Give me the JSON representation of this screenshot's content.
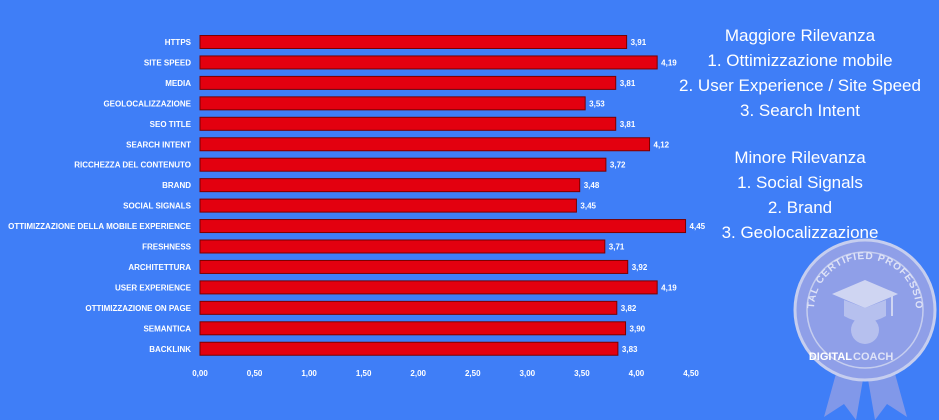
{
  "chart_data": {
    "type": "bar",
    "orientation": "horizontal",
    "categories": [
      "HTTPS",
      "SITE SPEED",
      "MEDIA",
      "GEOLOCALIZZAZIONE",
      "SEO TITLE",
      "SEARCH INTENT",
      "RICCHEZZA DEL CONTENUTO",
      "BRAND",
      "SOCIAL SIGNALS",
      "OTTIMIZZAZIONE DELLA MOBILE EXPERIENCE",
      "FRESHNESS",
      "ARCHITETTURA",
      "USER EXPERIENCE",
      "OTTIMIZZAZIONE ON PAGE",
      "SEMANTICA",
      "BACKLINK"
    ],
    "values": [
      3.91,
      4.19,
      3.81,
      3.53,
      3.81,
      4.12,
      3.72,
      3.48,
      3.45,
      4.45,
      3.71,
      3.92,
      4.19,
      3.82,
      3.9,
      3.83
    ],
    "value_labels": [
      "3,91",
      "4,19",
      "3,81",
      "3,53",
      "3,81",
      "4,12",
      "3,72",
      "3,48",
      "3,45",
      "4,45",
      "3,71",
      "3,92",
      "4,19",
      "3,82",
      "3,90",
      "3,83"
    ],
    "xticks": [
      0,
      0.5,
      1,
      1.5,
      2,
      2.5,
      3,
      3.5,
      4,
      4.5
    ],
    "xtick_labels": [
      "0,00",
      "0,50",
      "1,00",
      "1,50",
      "2,00",
      "2,50",
      "3,00",
      "3,50",
      "4,00",
      "4,50"
    ],
    "xlim": [
      0,
      4.5
    ],
    "grid": false,
    "legend": "none",
    "title": "",
    "xlabel": "",
    "ylabel": "",
    "bar_color": "#e3000f",
    "bar_edge_color": "#7a0000"
  },
  "annotations": {
    "top_block": {
      "heading": "Maggiore Rilevanza",
      "items": [
        "1. Ottimizzazione mobile",
        "2. User Experience / Site Speed",
        "3. Search Intent"
      ]
    },
    "bottom_block": {
      "heading": "Minore Rilevanza",
      "items": [
        "1. Social Signals",
        "2. Brand",
        "3. Geolocalizzazione"
      ]
    }
  },
  "badge": {
    "ring_text": "DIGITAL CERTIFIED PROFESSIONAL",
    "brand_part1": "DIGITAL",
    "brand_part2": "COACH",
    "ring_color": "#9ba9ec",
    "accent_color": "#c6ceef"
  },
  "background_color": "#3f7ef7"
}
